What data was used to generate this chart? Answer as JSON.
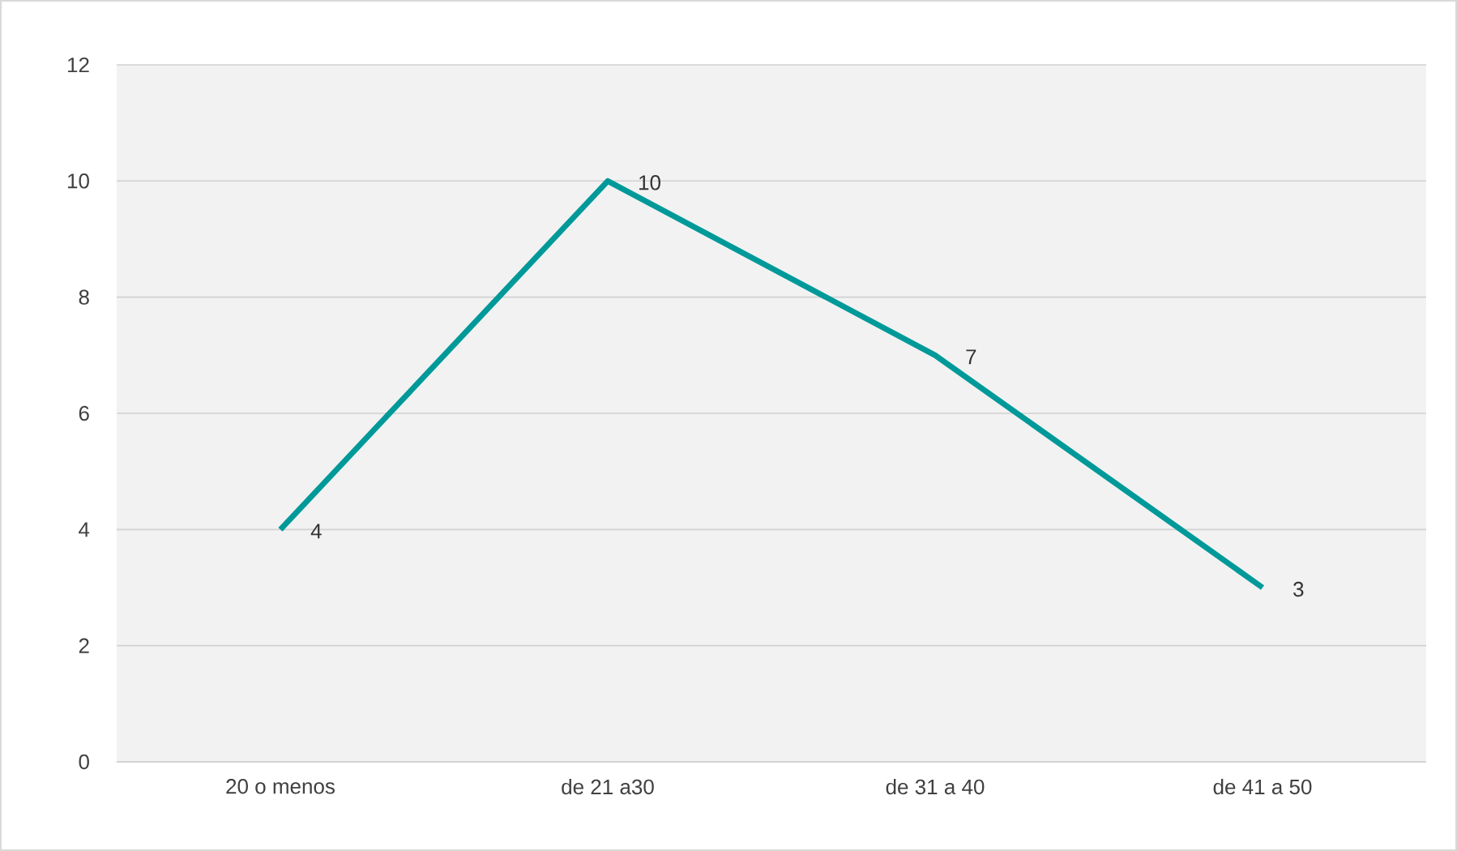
{
  "chart_data": {
    "type": "line",
    "categories": [
      "20 o menos",
      "de 21 a30",
      "de 31 a 40",
      "de 41 a 50"
    ],
    "values": [
      4,
      10,
      7,
      3
    ],
    "color": "#009999",
    "ylim": [
      0,
      12
    ],
    "yticks": [
      0,
      2,
      4,
      6,
      8,
      10,
      12
    ],
    "grid": "y",
    "data_labels": true,
    "marker": "none",
    "line_style": "solid"
  }
}
